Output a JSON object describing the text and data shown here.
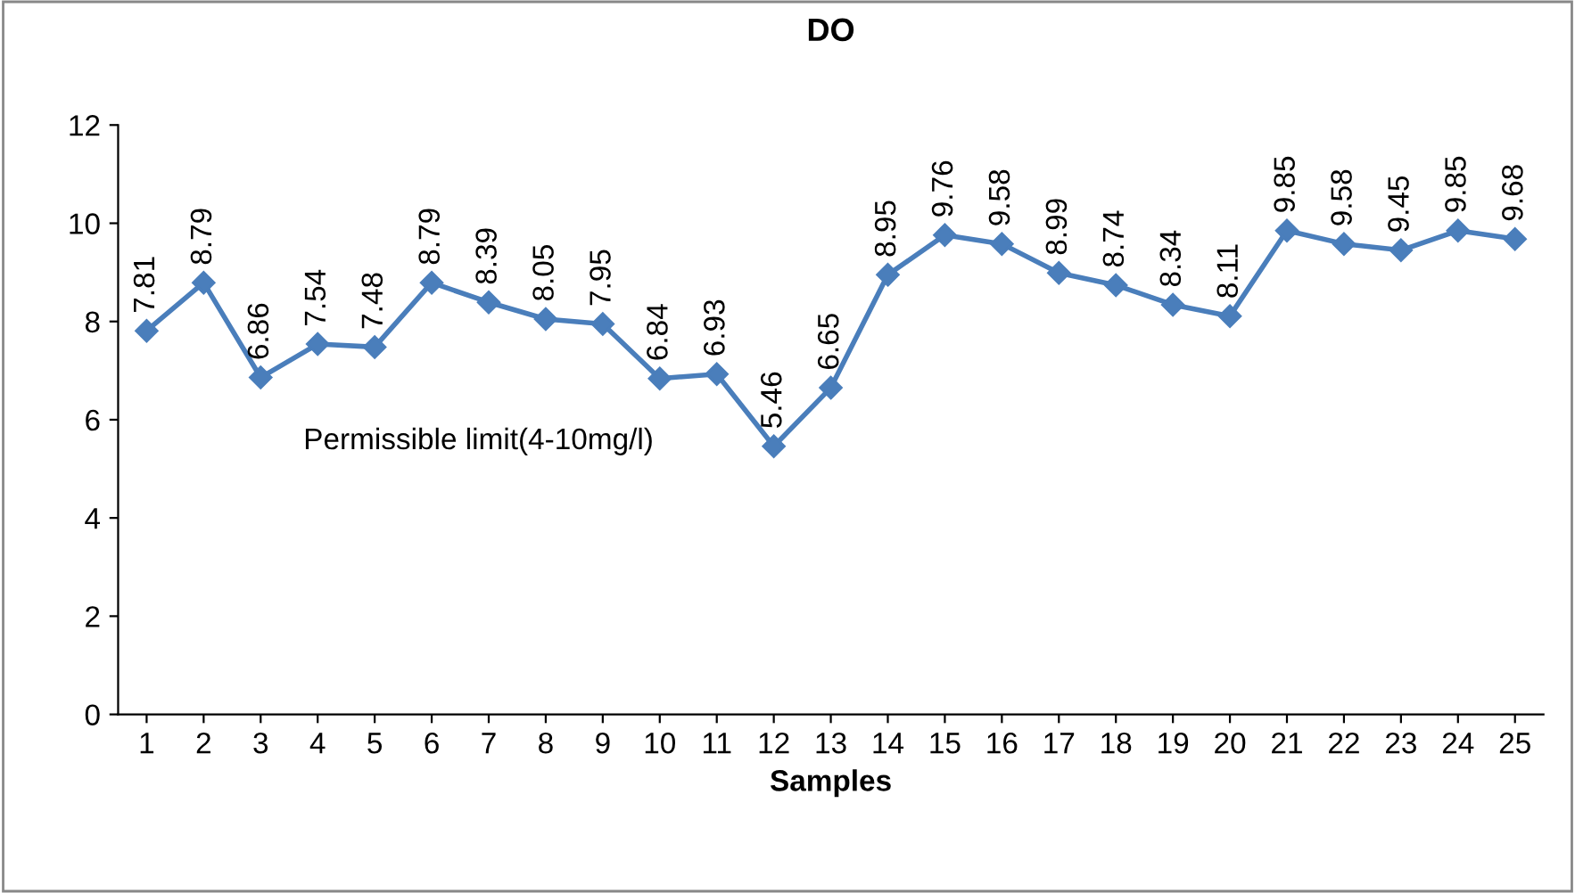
{
  "chart_data": {
    "type": "line",
    "title": "DO",
    "xlabel": "Samples",
    "categories": [
      "1",
      "2",
      "3",
      "4",
      "5",
      "6",
      "7",
      "8",
      "9",
      "10",
      "11",
      "12",
      "13",
      "14",
      "15",
      "16",
      "17",
      "18",
      "19",
      "20",
      "21",
      "22",
      "23",
      "24",
      "25"
    ],
    "series": [
      {
        "color": "#4a7ebb",
        "values": [
          7.81,
          8.79,
          6.86,
          7.54,
          7.48,
          8.79,
          8.39,
          8.05,
          7.95,
          6.84,
          6.93,
          5.46,
          6.65,
          8.95,
          9.76,
          9.58,
          8.99,
          8.74,
          8.34,
          8.11,
          9.85,
          9.58,
          9.45,
          9.85,
          9.68
        ]
      }
    ],
    "ylim": [
      0,
      12
    ],
    "yticks": [
      0,
      2,
      4,
      6,
      8,
      10,
      12
    ],
    "marker": "diamond",
    "line_style": "solid",
    "data_labels": true,
    "grid": false,
    "legend": false,
    "annotations": [
      "Permissible limit(4-10mg/l)"
    ]
  }
}
